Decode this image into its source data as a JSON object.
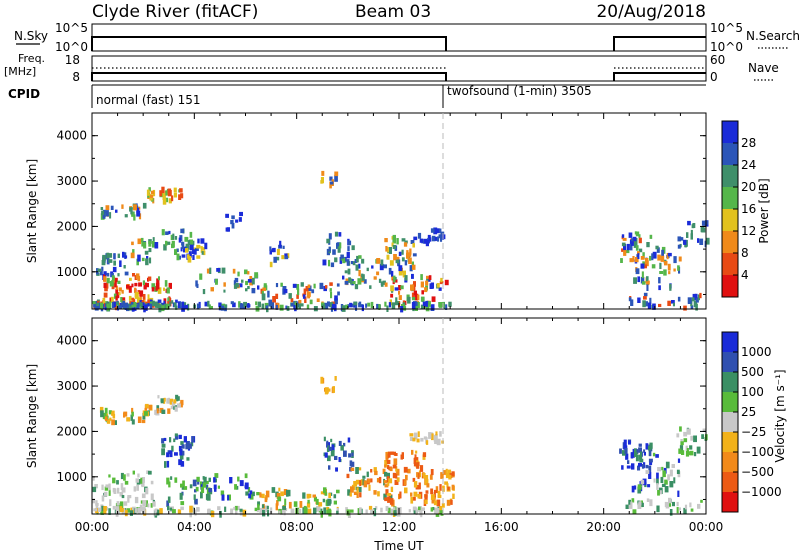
{
  "header": {
    "station": "Clyde River (fitACF)",
    "beam": "Beam 03",
    "date": "20/Aug/2018"
  },
  "nsky_panel": {
    "left_label": "N.Sky",
    "right_label": "N.Search",
    "left_ticks": [
      "10^5",
      "10^0"
    ],
    "right_ticks": [
      "10^5",
      "10^0"
    ]
  },
  "freq_panel": {
    "left_label_1": "Freq.",
    "left_label_2": "[MHz]",
    "right_label": "Nave",
    "left_ticks": [
      "18",
      "8"
    ],
    "right_ticks": [
      "60",
      "0"
    ]
  },
  "cpid_panel": {
    "label": "CPID",
    "mode_1": "normal (fast) 151",
    "mode_2": "twofsound (1-min) 3505"
  },
  "colors": {
    "power": [
      "#1a2bd8",
      "#2b55b8",
      "#3f8f6a",
      "#55b64a",
      "#e2c21e",
      "#f08a1a",
      "#e84a14",
      "#e01010"
    ],
    "velocity": [
      "#1a2bd8",
      "#3050b0",
      "#3a8f64",
      "#58bb3a",
      "#c8c8c8",
      "#f2b21a",
      "#f28a1a",
      "#ec5a14",
      "#e01010"
    ]
  },
  "chart_data": [
    {
      "type": "heatmap",
      "title": "Power",
      "xlabel": "",
      "ylabel": "Slant Range [km]",
      "colorbar_label": "Power [dB]",
      "colorbar_ticks": [
        "28",
        "24",
        "20",
        "16",
        "12",
        "8",
        "4"
      ],
      "x_ticks": [],
      "y_ticks": [
        "4000",
        "3000",
        "2000",
        "1000"
      ],
      "xlim": [
        "00:00",
        "24:00"
      ],
      "ylim": [
        180,
        4500
      ],
      "grid": false,
      "blobs": [
        {
          "t": 0.7,
          "r": 1150,
          "dt": 0.6,
          "dr": 250,
          "n": 32,
          "c": [
            0,
            1,
            2
          ]
        },
        {
          "t": 1.1,
          "r": 2350,
          "dt": 0.9,
          "dr": 130,
          "n": 30,
          "c": [
            0,
            1,
            2,
            3,
            5
          ]
        },
        {
          "t": 1.6,
          "r": 600,
          "dt": 1.4,
          "dr": 330,
          "n": 90,
          "c": [
            5,
            6,
            7,
            7,
            4,
            3
          ]
        },
        {
          "t": 1.3,
          "r": 280,
          "dt": 2.0,
          "dr": 70,
          "n": 90,
          "c": [
            0,
            1,
            2,
            6
          ]
        },
        {
          "t": 2.0,
          "r": 1500,
          "dt": 0.5,
          "dr": 260,
          "n": 22,
          "c": [
            0,
            2,
            3,
            5
          ]
        },
        {
          "t": 2.8,
          "r": 2700,
          "dt": 0.7,
          "dr": 140,
          "n": 30,
          "c": [
            3,
            4,
            5,
            6
          ]
        },
        {
          "t": 3.3,
          "r": 1600,
          "dt": 0.6,
          "dr": 320,
          "n": 30,
          "c": [
            0,
            1,
            2,
            3
          ]
        },
        {
          "t": 3.9,
          "r": 1500,
          "dt": 0.5,
          "dr": 200,
          "n": 25,
          "c": [
            0,
            1,
            2,
            4
          ]
        },
        {
          "t": 5.2,
          "r": 800,
          "dt": 1.2,
          "dr": 250,
          "n": 35,
          "c": [
            0,
            1,
            2,
            3,
            5
          ]
        },
        {
          "t": 5.5,
          "r": 2100,
          "dt": 0.3,
          "dr": 200,
          "n": 10,
          "c": [
            0,
            1
          ]
        },
        {
          "t": 7.2,
          "r": 1400,
          "dt": 0.4,
          "dr": 250,
          "n": 15,
          "c": [
            0,
            1,
            2,
            4
          ]
        },
        {
          "t": 8.0,
          "r": 500,
          "dt": 1.6,
          "dr": 230,
          "n": 55,
          "c": [
            0,
            1,
            2,
            3,
            5,
            6
          ]
        },
        {
          "t": 9.2,
          "r": 3050,
          "dt": 0.3,
          "dr": 150,
          "n": 10,
          "c": [
            1,
            4,
            5
          ]
        },
        {
          "t": 9.6,
          "r": 1500,
          "dt": 0.6,
          "dr": 350,
          "n": 30,
          "c": [
            0,
            1,
            2,
            3
          ]
        },
        {
          "t": 10.6,
          "r": 1000,
          "dt": 0.9,
          "dr": 350,
          "n": 40,
          "c": [
            0,
            1,
            2,
            3,
            5
          ]
        },
        {
          "t": 12.0,
          "r": 1350,
          "dt": 0.6,
          "dr": 450,
          "n": 45,
          "c": [
            0,
            1,
            2,
            3,
            4,
            5
          ]
        },
        {
          "t": 12.7,
          "r": 600,
          "dt": 1.1,
          "dr": 320,
          "n": 60,
          "c": [
            0,
            2,
            3,
            4,
            5,
            6,
            7
          ]
        },
        {
          "t": 13.2,
          "r": 1800,
          "dt": 0.6,
          "dr": 150,
          "n": 20,
          "c": [
            0,
            1
          ]
        },
        {
          "t": 7.0,
          "r": 260,
          "dt": 7.0,
          "dr": 60,
          "n": 160,
          "c": [
            0,
            1,
            2,
            3
          ]
        },
        {
          "t": 21.2,
          "r": 1500,
          "dt": 0.6,
          "dr": 350,
          "n": 40,
          "c": [
            0,
            1,
            2,
            3,
            5,
            6
          ]
        },
        {
          "t": 22.0,
          "r": 1100,
          "dt": 1.0,
          "dr": 450,
          "n": 45,
          "c": [
            0,
            1,
            2,
            3,
            5
          ]
        },
        {
          "t": 23.4,
          "r": 1800,
          "dt": 0.6,
          "dr": 300,
          "n": 25,
          "c": [
            0,
            1,
            2
          ]
        },
        {
          "t": 22.3,
          "r": 350,
          "dt": 1.6,
          "dr": 150,
          "n": 30,
          "c": [
            0,
            1,
            2,
            6
          ]
        }
      ]
    },
    {
      "type": "heatmap",
      "title": "Velocity",
      "xlabel": "Time UT",
      "ylabel": "Slant Range [km]",
      "colorbar_label": "Velocity [m s⁻¹]",
      "colorbar_ticks": [
        "1000",
        "500",
        "100",
        "25",
        "−25",
        "−100",
        "−500",
        "−1000"
      ],
      "x_ticks": [
        "00:00",
        "04:00",
        "08:00",
        "12:00",
        "16:00",
        "20:00",
        "00:00"
      ],
      "y_ticks": [
        "4000",
        "3000",
        "2000",
        "1000"
      ],
      "xlim": [
        "00:00",
        "24:00"
      ],
      "ylim": [
        180,
        4500
      ],
      "grid": false,
      "blobs": [
        {
          "t": 1.0,
          "r": 700,
          "dt": 1.4,
          "dr": 400,
          "n": 80,
          "c": [
            4,
            4,
            4,
            3,
            2
          ]
        },
        {
          "t": 2.8,
          "r": 2600,
          "dt": 0.8,
          "dr": 180,
          "n": 30,
          "c": [
            2,
            5,
            6,
            4
          ]
        },
        {
          "t": 1.2,
          "r": 2350,
          "dt": 0.9,
          "dr": 150,
          "n": 30,
          "c": [
            2,
            3,
            5,
            6
          ]
        },
        {
          "t": 3.3,
          "r": 1600,
          "dt": 0.6,
          "dr": 320,
          "n": 35,
          "c": [
            0,
            1,
            2
          ]
        },
        {
          "t": 3.7,
          "r": 700,
          "dt": 0.9,
          "dr": 280,
          "n": 30,
          "c": [
            2,
            3,
            1
          ]
        },
        {
          "t": 5.2,
          "r": 800,
          "dt": 1.2,
          "dr": 250,
          "n": 35,
          "c": [
            2,
            3,
            0
          ]
        },
        {
          "t": 7.0,
          "r": 260,
          "dt": 7.0,
          "dr": 60,
          "n": 160,
          "c": [
            4,
            4,
            2,
            3,
            5
          ]
        },
        {
          "t": 8.0,
          "r": 500,
          "dt": 1.6,
          "dr": 230,
          "n": 55,
          "c": [
            2,
            3,
            5,
            6
          ]
        },
        {
          "t": 9.2,
          "r": 3050,
          "dt": 0.3,
          "dr": 150,
          "n": 10,
          "c": [
            5,
            6
          ]
        },
        {
          "t": 9.6,
          "r": 1500,
          "dt": 0.6,
          "dr": 350,
          "n": 30,
          "c": [
            0,
            1,
            2
          ]
        },
        {
          "t": 10.8,
          "r": 900,
          "dt": 0.9,
          "dr": 350,
          "n": 45,
          "c": [
            2,
            6,
            7,
            5
          ]
        },
        {
          "t": 12.2,
          "r": 1000,
          "dt": 0.8,
          "dr": 550,
          "n": 70,
          "c": [
            6,
            7,
            7,
            5
          ]
        },
        {
          "t": 13.5,
          "r": 750,
          "dt": 0.6,
          "dr": 400,
          "n": 45,
          "c": [
            6,
            7,
            5
          ]
        },
        {
          "t": 13.0,
          "r": 1850,
          "dt": 0.7,
          "dr": 120,
          "n": 20,
          "c": [
            4,
            4,
            5
          ]
        },
        {
          "t": 21.2,
          "r": 1500,
          "dt": 0.6,
          "dr": 300,
          "n": 40,
          "c": [
            0,
            0,
            1,
            2
          ]
        },
        {
          "t": 22.0,
          "r": 1100,
          "dt": 1.0,
          "dr": 450,
          "n": 45,
          "c": [
            2,
            3,
            0,
            4
          ]
        },
        {
          "t": 23.4,
          "r": 1800,
          "dt": 0.6,
          "dr": 300,
          "n": 25,
          "c": [
            2,
            3,
            4
          ]
        },
        {
          "t": 22.3,
          "r": 350,
          "dt": 1.6,
          "dr": 150,
          "n": 30,
          "c": [
            2,
            3,
            4
          ]
        }
      ]
    }
  ]
}
